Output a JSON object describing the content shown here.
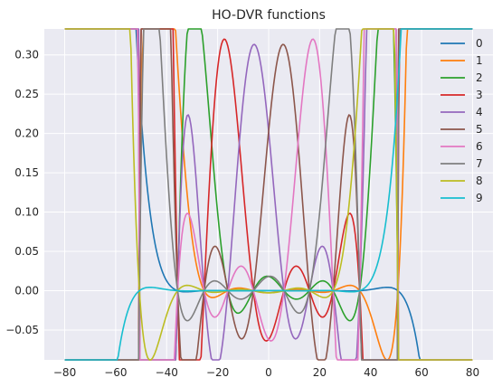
{
  "chart_data": {
    "type": "line",
    "title": "HO-DVR functions",
    "xlabel": "",
    "ylabel": "",
    "xlim": [
      -88,
      88
    ],
    "ylim": [
      -0.088,
      0.333
    ],
    "xticks": [
      -80,
      -60,
      -40,
      -20,
      0,
      20,
      40,
      60,
      80
    ],
    "xtick_labels": [
      "−80",
      "−60",
      "−40",
      "−20",
      "0",
      "20",
      "40",
      "60",
      "80"
    ],
    "yticks": [
      -0.05,
      0.0,
      0.05,
      0.1,
      0.15,
      0.2,
      0.25,
      0.3
    ],
    "ytick_labels": [
      "−0.05",
      "0.00",
      "0.05",
      "0.10",
      "0.15",
      "0.20",
      "0.25",
      "0.30"
    ],
    "grid": true,
    "background": "#eaeaf2",
    "legend_position": "top-right",
    "grid_centers": [
      -50.7,
      -35.7,
      -25.3,
      -16.0,
      -6.0,
      6.0,
      16.0,
      25.3,
      35.7,
      50.7
    ],
    "peaks": [
      0.257,
      0.287,
      0.301,
      0.311,
      0.313,
      0.313,
      0.311,
      0.301,
      0.287,
      0.257
    ],
    "series": [
      {
        "name": "0",
        "color": "#1f77b4"
      },
      {
        "name": "1",
        "color": "#ff7f0e"
      },
      {
        "name": "2",
        "color": "#2ca02c"
      },
      {
        "name": "3",
        "color": "#d62728"
      },
      {
        "name": "4",
        "color": "#9467bd"
      },
      {
        "name": "5",
        "color": "#8c564b"
      },
      {
        "name": "6",
        "color": "#e377c2"
      },
      {
        "name": "7",
        "color": "#7f7f7f"
      },
      {
        "name": "8",
        "color": "#bcbd22"
      },
      {
        "name": "9",
        "color": "#17becf"
      }
    ]
  }
}
